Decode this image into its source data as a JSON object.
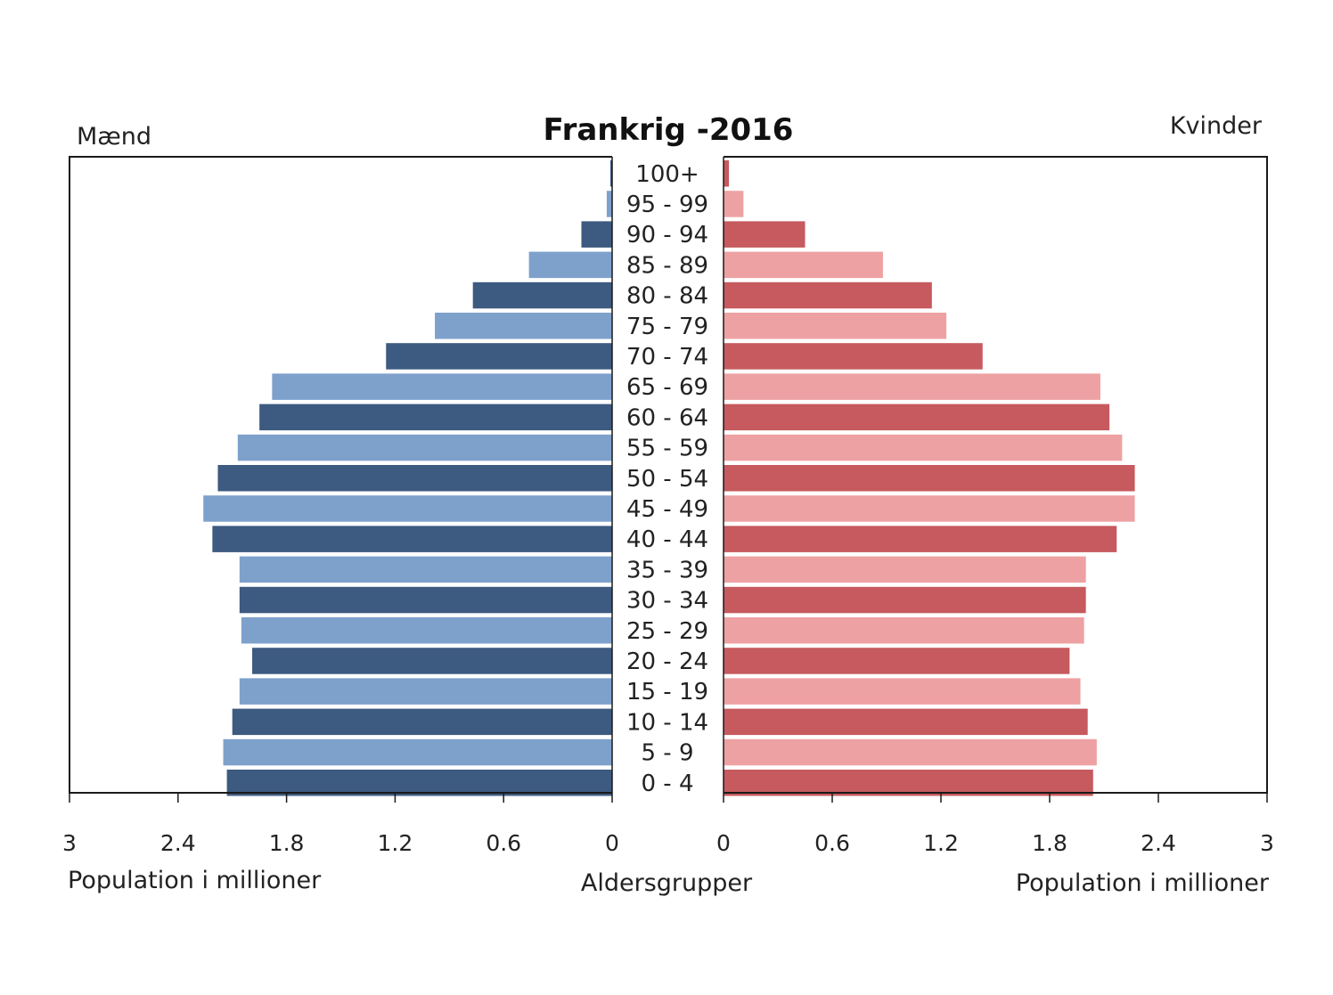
{
  "chart_data": {
    "type": "bar",
    "title": "Frankrig -2016",
    "left_label": "Mænd",
    "right_label": "Kvinder",
    "center_label": "Aldersgrupper",
    "xlabel_left": "Population i millioner",
    "xlabel_right": "Population i millioner",
    "xlim": [
      0,
      3
    ],
    "ticks_left": [
      "3",
      "2.4",
      "1.8",
      "1.2",
      "0.6",
      "0"
    ],
    "ticks_right": [
      "0",
      "0.6",
      "1.2",
      "1.8",
      "2.4",
      "3"
    ],
    "categories": [
      "100+",
      "95 - 99",
      "90 - 94",
      "85 - 89",
      "80 - 84",
      "75 - 79",
      "70 - 74",
      "65 - 69",
      "60 - 64",
      "55 - 59",
      "50 - 54",
      "45 - 49",
      "40 - 44",
      "35 - 39",
      "30 - 34",
      "25 - 29",
      "20 - 24",
      "15 - 19",
      "10 - 14",
      "5 - 9",
      "0 - 4"
    ],
    "series": [
      {
        "name": "Mænd",
        "values": [
          0.01,
          0.03,
          0.17,
          0.46,
          0.77,
          0.98,
          1.25,
          1.88,
          1.95,
          2.07,
          2.18,
          2.26,
          2.21,
          2.06,
          2.06,
          2.05,
          1.99,
          2.06,
          2.1,
          2.15,
          2.13
        ]
      },
      {
        "name": "Kvinder",
        "values": [
          0.03,
          0.11,
          0.45,
          0.88,
          1.15,
          1.23,
          1.43,
          2.08,
          2.13,
          2.2,
          2.27,
          2.27,
          2.17,
          2.0,
          2.0,
          1.99,
          1.91,
          1.97,
          2.01,
          2.06,
          2.04
        ]
      }
    ],
    "colors": {
      "male_dark": "#3d5a80",
      "male_light": "#7ea1cc",
      "female_dark": "#c65a5e",
      "female_light": "#eea1a3"
    }
  }
}
